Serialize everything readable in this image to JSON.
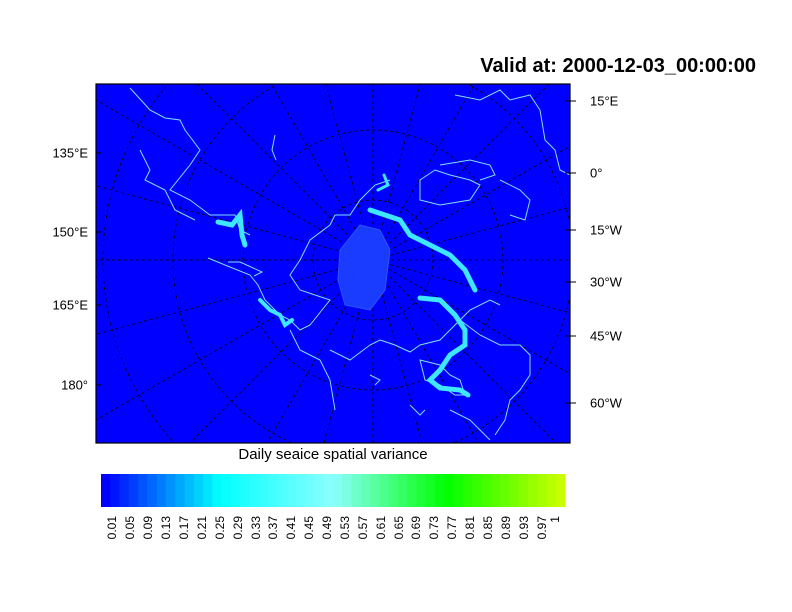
{
  "title": "Valid at: 2000-12-03_00:00:00",
  "left_labels": [
    "135°E",
    "150°E",
    "165°E",
    "180°"
  ],
  "right_labels": [
    "15°E",
    "0°",
    "15°W",
    "30°W",
    "45°W",
    "60°W"
  ],
  "colorbar": {
    "title": "Daily seaice spatial variance",
    "labels": [
      "0.01",
      "0.05",
      "0.09",
      "0.13",
      "0.17",
      "0.21",
      "0.25",
      "0.29",
      "0.33",
      "0.37",
      "0.41",
      "0.45",
      "0.49",
      "0.53",
      "0.57",
      "0.61",
      "0.65",
      "0.69",
      "0.73",
      "0.77",
      "0.81",
      "0.85",
      "0.89",
      "0.93",
      "0.97",
      "1"
    ],
    "colors": [
      "#0000ff",
      "#00ffff",
      "#8cffff",
      "#00ff00",
      "#c8ff00"
    ]
  },
  "map": {
    "ocean_color": "#0000ff",
    "coast_color": "#7fe0ff",
    "projection": "polar stereographic"
  }
}
